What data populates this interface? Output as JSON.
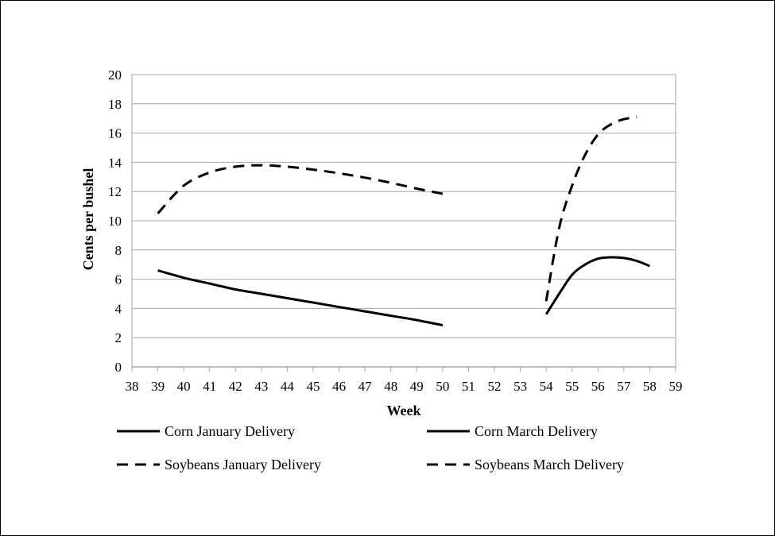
{
  "chart_data": {
    "type": "line",
    "xlabel": "Week",
    "ylabel": "Cents per bushel",
    "xlim": [
      38,
      59
    ],
    "ylim": [
      0,
      20
    ],
    "x_ticks": [
      "38",
      "39",
      "40",
      "41",
      "42",
      "43",
      "44",
      "45",
      "46",
      "47",
      "48",
      "49",
      "50",
      "51",
      "52",
      "53",
      "54",
      "55",
      "56",
      "57",
      "58",
      "59"
    ],
    "y_ticks": [
      "0",
      "2",
      "4",
      "6",
      "8",
      "10",
      "12",
      "14",
      "16",
      "18",
      "20"
    ],
    "grid": "horizontal",
    "legend_position": "bottom",
    "colors": {
      "line": "#000000",
      "grid": "#a6a6a6"
    },
    "series": [
      {
        "name": "Corn January Delivery",
        "style": "solid",
        "x": [
          39,
          40,
          41,
          42,
          43,
          44,
          45,
          46,
          47,
          48,
          49,
          50
        ],
        "y": [
          6.6,
          6.1,
          5.7,
          5.3,
          5.0,
          4.7,
          4.4,
          4.1,
          3.8,
          3.5,
          3.2,
          2.85
        ]
      },
      {
        "name": "Corn March Delivery",
        "style": "solid",
        "x": [
          54,
          54.5,
          55,
          55.5,
          56,
          56.5,
          57,
          57.5,
          58
        ],
        "y": [
          3.6,
          5.0,
          6.3,
          7.0,
          7.4,
          7.5,
          7.45,
          7.25,
          6.9
        ]
      },
      {
        "name": "Soybeans January Delivery",
        "style": "dashed",
        "x": [
          39,
          40,
          41,
          42,
          43,
          44,
          45,
          46,
          47,
          48,
          49,
          50
        ],
        "y": [
          10.5,
          12.4,
          13.3,
          13.7,
          13.8,
          13.7,
          13.5,
          13.25,
          12.95,
          12.6,
          12.2,
          11.85
        ]
      },
      {
        "name": "Soybeans March Delivery",
        "style": "dashed",
        "x": [
          54,
          54.5,
          55,
          55.5,
          56,
          56.5,
          57,
          57.5
        ],
        "y": [
          4.5,
          9.5,
          12.4,
          14.5,
          15.9,
          16.6,
          16.95,
          17.1
        ]
      }
    ],
    "legend": {
      "rows": [
        [
          "Corn January Delivery",
          "Corn March Delivery"
        ],
        [
          "Soybeans January Delivery",
          "Soybeans March Delivery"
        ]
      ]
    }
  }
}
